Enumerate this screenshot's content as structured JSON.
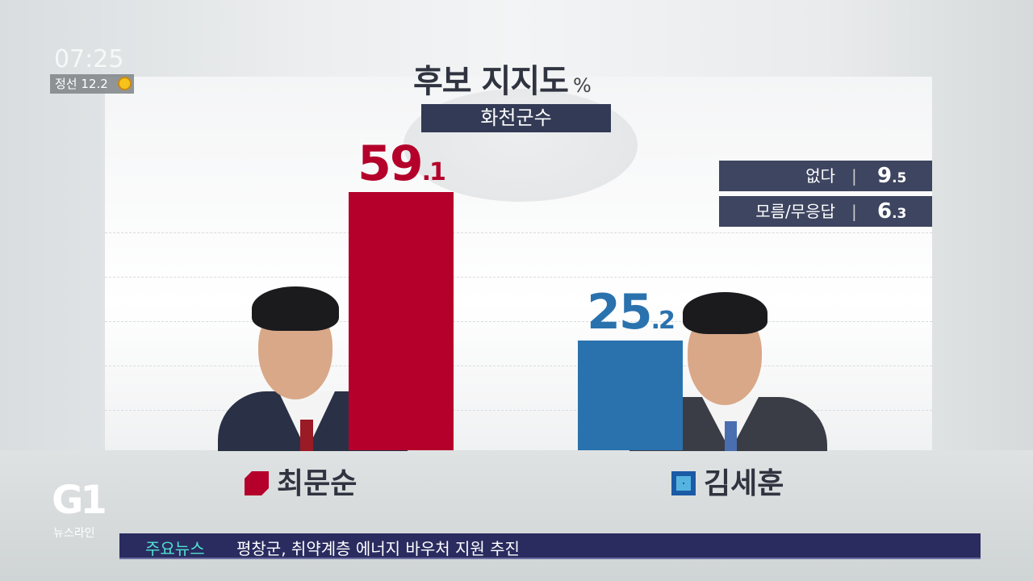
{
  "overlay": {
    "clock": "07:25",
    "weather_location": "정선",
    "weather_temp": "12.2",
    "weather_icon": "sun-icon"
  },
  "brand": {
    "logo": "G1",
    "program": "뉴스라인"
  },
  "ticker": {
    "label": "주요뉴스",
    "headline": "평창군, 취약계층 에너지 바우처 지원 추진"
  },
  "chart_data": {
    "type": "bar",
    "title": "후보 지지도",
    "unit": "%",
    "subtitle": "화천군수",
    "categories": [
      "최문순",
      "김세훈"
    ],
    "values": [
      59.1,
      25.2
    ],
    "value_labels": [
      {
        "int": "59",
        "dec": ".1"
      },
      {
        "int": "25",
        "dec": ".2"
      }
    ],
    "colors": [
      "#b4002a",
      "#2a72ae"
    ],
    "other": [
      {
        "label": "없다",
        "value": 9.5,
        "int": "9",
        "dec": ".5"
      },
      {
        "label": "모름/무응답",
        "value": 6.3,
        "int": "6",
        "dec": ".3"
      }
    ],
    "grid": true
  }
}
